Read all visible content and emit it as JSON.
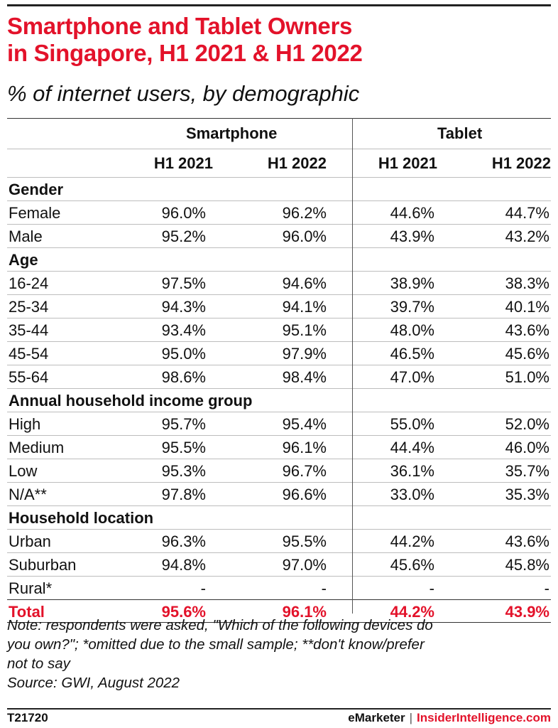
{
  "title_line1": "Smartphone and Tablet Owners",
  "title_line2": "in Singapore, H1 2021 & H1 2022",
  "subtitle": "% of internet users, by demographic",
  "groups": [
    "Smartphone",
    "Tablet"
  ],
  "periods": [
    "H1 2021",
    "H1 2022",
    "H1 2021",
    "H1 2022"
  ],
  "rows": [
    {
      "label": "Gender",
      "section": true,
      "values": [
        "",
        "",
        "",
        ""
      ]
    },
    {
      "label": "Female",
      "values": [
        "96.0%",
        "96.2%",
        "44.6%",
        "44.7%"
      ]
    },
    {
      "label": "Male",
      "values": [
        "95.2%",
        "96.0%",
        "43.9%",
        "43.2%"
      ]
    },
    {
      "label": "Age",
      "section": true,
      "values": [
        "",
        "",
        "",
        ""
      ]
    },
    {
      "label": "16-24",
      "values": [
        "97.5%",
        "94.6%",
        "38.9%",
        "38.3%"
      ]
    },
    {
      "label": "25-34",
      "values": [
        "94.3%",
        "94.1%",
        "39.7%",
        "40.1%"
      ]
    },
    {
      "label": "35-44",
      "values": [
        "93.4%",
        "95.1%",
        "48.0%",
        "43.6%"
      ]
    },
    {
      "label": "45-54",
      "values": [
        "95.0%",
        "97.9%",
        "46.5%",
        "45.6%"
      ]
    },
    {
      "label": "55-64",
      "values": [
        "98.6%",
        "98.4%",
        "47.0%",
        "51.0%"
      ]
    },
    {
      "label": "Annual household income group",
      "section": true,
      "values": [
        "",
        "",
        "",
        ""
      ]
    },
    {
      "label": "High",
      "values": [
        "95.7%",
        "95.4%",
        "55.0%",
        "52.0%"
      ]
    },
    {
      "label": "Medium",
      "values": [
        "95.5%",
        "96.1%",
        "44.4%",
        "46.0%"
      ]
    },
    {
      "label": "Low",
      "values": [
        "95.3%",
        "96.7%",
        "36.1%",
        "35.7%"
      ]
    },
    {
      "label": "N/A**",
      "values": [
        "97.8%",
        "96.6%",
        "33.0%",
        "35.3%"
      ]
    },
    {
      "label": "Household location",
      "section": true,
      "values": [
        "",
        "",
        "",
        ""
      ]
    },
    {
      "label": "Urban",
      "values": [
        "96.3%",
        "95.5%",
        "44.2%",
        "43.6%"
      ]
    },
    {
      "label": "Suburban",
      "values": [
        "94.8%",
        "97.0%",
        "45.6%",
        "45.8%"
      ]
    },
    {
      "label": "Rural*",
      "values": [
        "-",
        "-",
        "-",
        "-"
      ]
    },
    {
      "label": "Total",
      "total": true,
      "values": [
        "95.6%",
        "96.1%",
        "44.2%",
        "43.9%"
      ]
    }
  ],
  "note_line1": "Note: respondents were asked, \"Which of the following devices do",
  "note_line2": "you own?\"; *omitted due to the small sample; **don't know/prefer",
  "note_line3": "not to say",
  "source": "Source: GWI, August 2022",
  "footer_id": "T21720",
  "footer_brand1": "eMarketer",
  "footer_sep": "|",
  "footer_brand2": "InsiderIntelligence.com",
  "accent_color": "#e3122a",
  "chart_data": {
    "type": "table",
    "title": "Smartphone and Tablet Owners in Singapore, H1 2021 & H1 2022",
    "subtitle": "% of internet users, by demographic",
    "columns": [
      "Smartphone H1 2021",
      "Smartphone H1 2022",
      "Tablet H1 2021",
      "Tablet H1 2022"
    ],
    "rows": [
      {
        "category": "Gender",
        "label": "Female",
        "values": [
          96.0,
          96.2,
          44.6,
          44.7
        ]
      },
      {
        "category": "Gender",
        "label": "Male",
        "values": [
          95.2,
          96.0,
          43.9,
          43.2
        ]
      },
      {
        "category": "Age",
        "label": "16-24",
        "values": [
          97.5,
          94.6,
          38.9,
          38.3
        ]
      },
      {
        "category": "Age",
        "label": "25-34",
        "values": [
          94.3,
          94.1,
          39.7,
          40.1
        ]
      },
      {
        "category": "Age",
        "label": "35-44",
        "values": [
          93.4,
          95.1,
          48.0,
          43.6
        ]
      },
      {
        "category": "Age",
        "label": "45-54",
        "values": [
          95.0,
          97.9,
          46.5,
          45.6
        ]
      },
      {
        "category": "Age",
        "label": "55-64",
        "values": [
          98.6,
          98.4,
          47.0,
          51.0
        ]
      },
      {
        "category": "Annual household income group",
        "label": "High",
        "values": [
          95.7,
          95.4,
          55.0,
          52.0
        ]
      },
      {
        "category": "Annual household income group",
        "label": "Medium",
        "values": [
          95.5,
          96.1,
          44.4,
          46.0
        ]
      },
      {
        "category": "Annual household income group",
        "label": "Low",
        "values": [
          95.3,
          96.7,
          36.1,
          35.7
        ]
      },
      {
        "category": "Annual household income group",
        "label": "N/A**",
        "values": [
          97.8,
          96.6,
          33.0,
          35.3
        ]
      },
      {
        "category": "Household location",
        "label": "Urban",
        "values": [
          96.3,
          95.5,
          44.2,
          43.6
        ]
      },
      {
        "category": "Household location",
        "label": "Suburban",
        "values": [
          94.8,
          97.0,
          45.6,
          45.8
        ]
      },
      {
        "category": "Household location",
        "label": "Rural*",
        "values": [
          null,
          null,
          null,
          null
        ]
      },
      {
        "category": "Total",
        "label": "Total",
        "values": [
          95.6,
          96.1,
          44.2,
          43.9
        ]
      }
    ]
  }
}
